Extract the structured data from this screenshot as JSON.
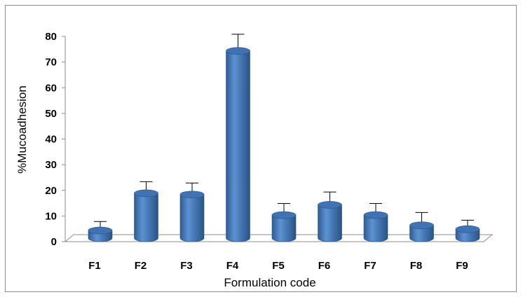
{
  "chart_data": {
    "type": "bar",
    "title": "",
    "xlabel": "Formulation code",
    "ylabel": "%Mucoadhesion",
    "categories": [
      "F1",
      "F2",
      "F3",
      "F4",
      "F5",
      "F6",
      "F7",
      "F8",
      "F9"
    ],
    "series": [
      {
        "values": [
          3,
          17.5,
          17,
          73,
          9,
          13,
          9,
          5,
          3.5
        ],
        "error": [
          3.5,
          4.5,
          4.5,
          6.5,
          4.5,
          5,
          4.5,
          5,
          3.5
        ]
      }
    ],
    "ylim": [
      0,
      80
    ],
    "yticks": [
      0,
      10,
      20,
      30,
      40,
      50,
      60,
      70,
      80
    ],
    "grid": false,
    "legend": "none",
    "bar_style": "3d-cylinder",
    "bar_color": "#4a7ebb",
    "error_bars": "positive"
  }
}
